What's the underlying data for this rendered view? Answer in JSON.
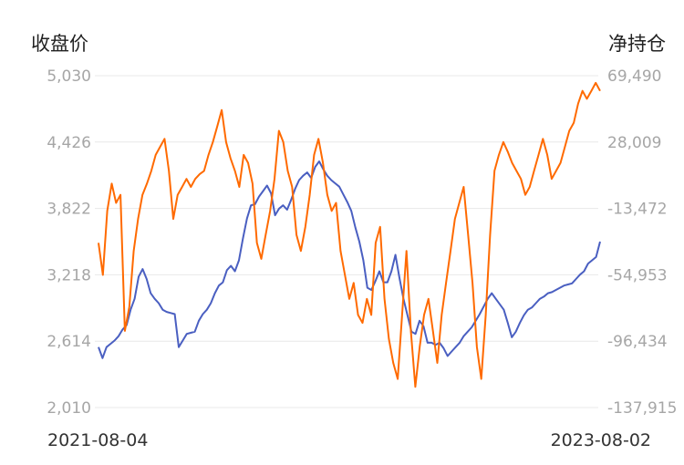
{
  "chart_data": {
    "type": "line",
    "title": "",
    "left_axis": {
      "title": "收盘价",
      "ticks": [
        "5,030",
        "4,426",
        "3,822",
        "3,218",
        "2,614",
        "2,010"
      ],
      "ylim": [
        2010,
        5030
      ]
    },
    "right_axis": {
      "title": "净持仓",
      "ticks": [
        "69,490",
        "28,009",
        "-13,472",
        "-54,953",
        "-96,434",
        "-137,915"
      ],
      "ylim": [
        -137915,
        69490
      ]
    },
    "x_labels": {
      "start": "2021-08-04",
      "end": "2023-08-02"
    },
    "x": {
      "start": "2021-08-04",
      "end": "2023-08-02"
    },
    "grid": true,
    "series": [
      {
        "axis": "left",
        "color": "#4a5fc1",
        "values": [
          2560,
          2460,
          2560,
          2590,
          2620,
          2660,
          2720,
          2760,
          2900,
          3000,
          3200,
          3270,
          3180,
          3050,
          3000,
          2960,
          2900,
          2880,
          2870,
          2860,
          2560,
          2620,
          2680,
          2690,
          2700,
          2800,
          2860,
          2900,
          2960,
          3050,
          3120,
          3150,
          3260,
          3300,
          3250,
          3350,
          3550,
          3730,
          3850,
          3860,
          3930,
          3980,
          4030,
          3960,
          3760,
          3820,
          3850,
          3810,
          3900,
          4000,
          4080,
          4120,
          4150,
          4100,
          4200,
          4250,
          4180,
          4120,
          4080,
          4050,
          4020,
          3950,
          3880,
          3800,
          3650,
          3520,
          3350,
          3100,
          3080,
          3160,
          3250,
          3150,
          3150,
          3250,
          3400,
          3190,
          3000,
          2850,
          2700,
          2680,
          2800,
          2750,
          2600,
          2600,
          2580,
          2600,
          2550,
          2480,
          2520,
          2560,
          2600,
          2660,
          2700,
          2740,
          2800,
          2860,
          2930,
          3000,
          3050,
          3000,
          2950,
          2900,
          2780,
          2650,
          2700,
          2780,
          2850,
          2900,
          2920,
          2960,
          3000,
          3020,
          3050,
          3060,
          3080,
          3100,
          3120,
          3130,
          3140,
          3180,
          3220,
          3250,
          3320,
          3350,
          3380,
          3520
        ]
      },
      {
        "axis": "right",
        "color": "#ff6a00",
        "values": [
          -35000,
          -55000,
          -15000,
          2000,
          -10000,
          -5000,
          -90000,
          -75000,
          -40000,
          -20000,
          -5000,
          2000,
          10000,
          20000,
          25000,
          30000,
          10000,
          -20000,
          -5000,
          0,
          5000,
          0,
          5000,
          8000,
          10000,
          20000,
          28000,
          38000,
          48000,
          28000,
          18000,
          10000,
          0,
          20000,
          15000,
          2000,
          -35000,
          -45000,
          -30000,
          -15000,
          5000,
          35000,
          28000,
          10000,
          0,
          -30000,
          -40000,
          -25000,
          -5000,
          20000,
          30000,
          15000,
          -5000,
          -15000,
          -10000,
          -40000,
          -55000,
          -70000,
          -60000,
          -80000,
          -85000,
          -70000,
          -80000,
          -35000,
          -25000,
          -70000,
          -95000,
          -110000,
          -120000,
          -80000,
          -40000,
          -90000,
          -125000,
          -100000,
          -80000,
          -70000,
          -90000,
          -110000,
          -80000,
          -60000,
          -40000,
          -20000,
          -10000,
          0,
          -30000,
          -60000,
          -100000,
          -120000,
          -80000,
          -30000,
          10000,
          20000,
          28000,
          22000,
          15000,
          10000,
          5000,
          -5000,
          0,
          10000,
          20000,
          30000,
          20000,
          5000,
          10000,
          15000,
          25000,
          35000,
          40000,
          52000,
          60000,
          55000,
          60000,
          65000,
          60000
        ]
      }
    ]
  }
}
